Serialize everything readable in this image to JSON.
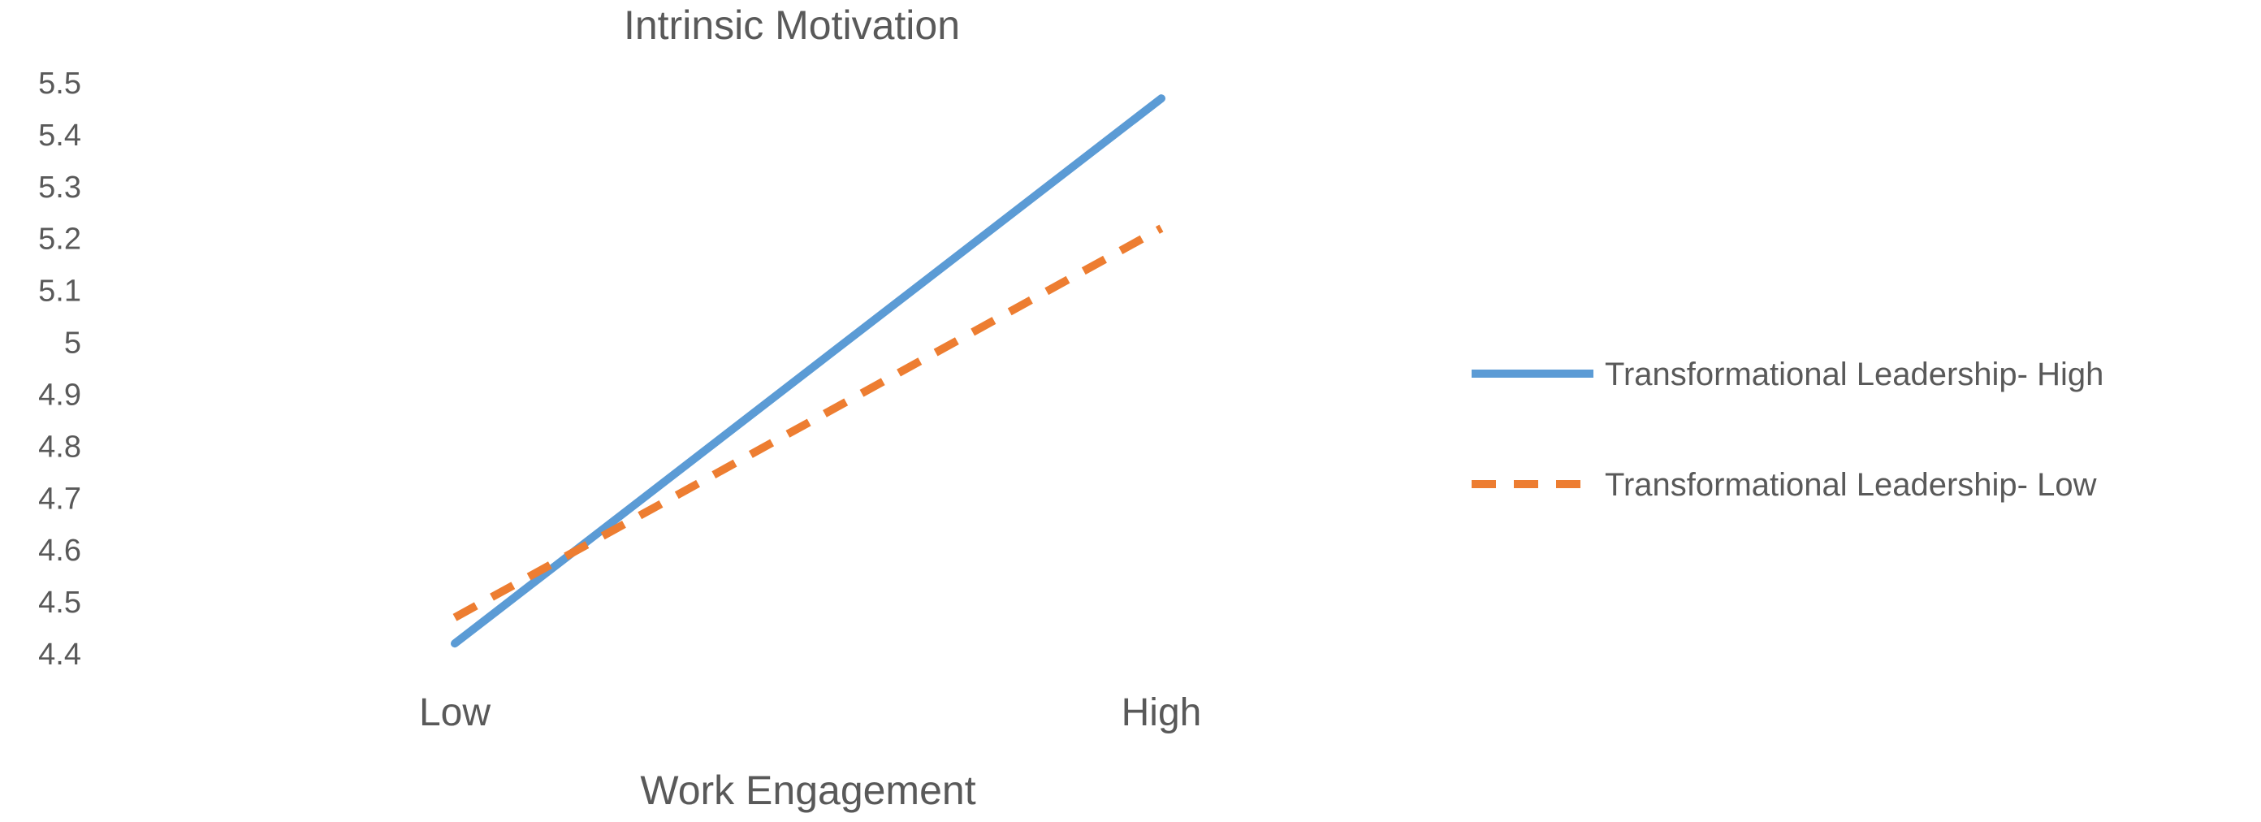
{
  "chart_data": {
    "type": "line",
    "title": "Intrinsic Motivation",
    "xlabel": "Work Engagement",
    "ylabel": "",
    "categories": [
      "Low",
      "High"
    ],
    "ylim": [
      4.4,
      5.5
    ],
    "yticks": [
      "5.5",
      "5.4",
      "5.3",
      "5.2",
      "5.1",
      "5",
      "4.9",
      "4.8",
      "4.7",
      "4.6",
      "4.5",
      "4.4"
    ],
    "grid": false,
    "legend_position": "right",
    "series": [
      {
        "name": "Transformational Leadership- High",
        "values": [
          4.42,
          5.47
        ],
        "color": "#5B9BD5",
        "line_style": "solid"
      },
      {
        "name": "Transformational Leadership- Low",
        "values": [
          4.47,
          5.22
        ],
        "color": "#ED7D31",
        "line_style": "dashed"
      }
    ]
  }
}
